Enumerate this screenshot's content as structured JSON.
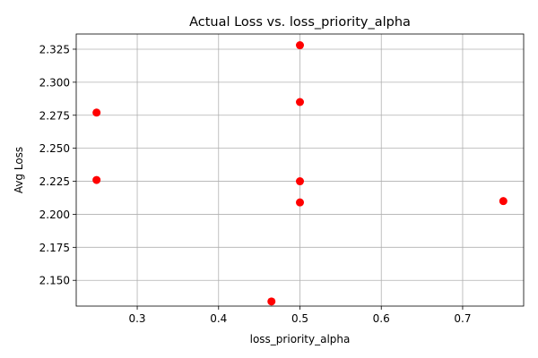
{
  "chart_data": {
    "type": "scatter",
    "title": "Actual Loss vs. loss_priority_alpha",
    "xlabel": "loss_priority_alpha",
    "ylabel": "Avg Loss",
    "xlim": [
      0.225,
      0.775
    ],
    "ylim": [
      2.1305,
      2.3365
    ],
    "x_ticks": [
      0.3,
      0.4,
      0.5,
      0.6,
      0.7
    ],
    "x_tick_labels": [
      "0.3",
      "0.4",
      "0.5",
      "0.6",
      "0.7"
    ],
    "y_ticks": [
      2.15,
      2.175,
      2.2,
      2.225,
      2.25,
      2.275,
      2.3,
      2.325
    ],
    "y_tick_labels": [
      "2.150",
      "2.175",
      "2.200",
      "2.225",
      "2.250",
      "2.275",
      "2.300",
      "2.325"
    ],
    "grid": true,
    "marker_color": "#ff0000",
    "points": [
      {
        "x": 0.5,
        "y": 2.328
      },
      {
        "x": 0.5,
        "y": 2.285
      },
      {
        "x": 0.25,
        "y": 2.277
      },
      {
        "x": 0.25,
        "y": 2.226
      },
      {
        "x": 0.5,
        "y": 2.225
      },
      {
        "x": 0.5,
        "y": 2.209
      },
      {
        "x": 0.75,
        "y": 2.21
      },
      {
        "x": 0.465,
        "y": 2.134
      }
    ]
  }
}
